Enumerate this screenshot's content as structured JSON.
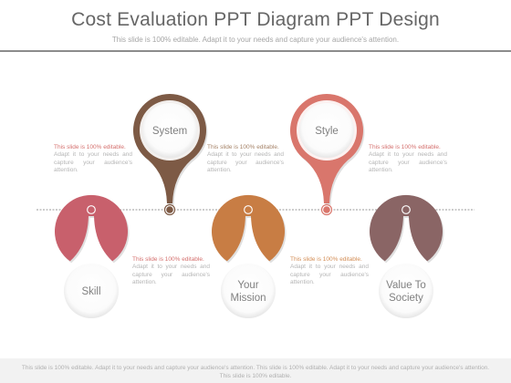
{
  "header": {
    "title": "Cost Evaluation PPT Diagram PPT Design",
    "subtitle": "This slide is 100% editable. Adapt it to your needs and capture your audience's attention."
  },
  "nodes": [
    {
      "label_lines": [
        "System"
      ],
      "color": "#7d5a45",
      "orientation": "up"
    },
    {
      "label_lines": [
        "Style"
      ],
      "color": "#d9766c",
      "orientation": "up"
    },
    {
      "label_lines": [
        "Skill"
      ],
      "color": "#c8606c",
      "orientation": "down"
    },
    {
      "label_lines": [
        "Your",
        "Mission"
      ],
      "color": "#c87d44",
      "orientation": "down"
    },
    {
      "label_lines": [
        "Value To",
        "Society"
      ],
      "color": "#8a6565",
      "orientation": "down"
    }
  ],
  "descriptions": [
    {
      "lead": "This slide is 100% editable.",
      "body": "Adapt it to your needs and capture your audience's attention."
    },
    {
      "lead": "This slide is 100% editable.",
      "body": "Adapt it to your needs and capture your audience's attention."
    },
    {
      "lead": "This slide is 100% editable.",
      "body": "Adapt it to your needs and capture your audience's attention."
    },
    {
      "lead": "This slide is 100% editable.",
      "body": "Adapt it to your needs and capture your audience's attention."
    },
    {
      "lead": "This slide is 100% editable.",
      "body": "Adapt it to your needs and capture your audience's attention."
    }
  ],
  "footer": {
    "text": "This slide is 100% editable. Adapt it to your needs and capture your audience's attention. This slide is 100% editable. Adapt it to your needs and capture your audience's attention. This slide is 100% editable."
  }
}
